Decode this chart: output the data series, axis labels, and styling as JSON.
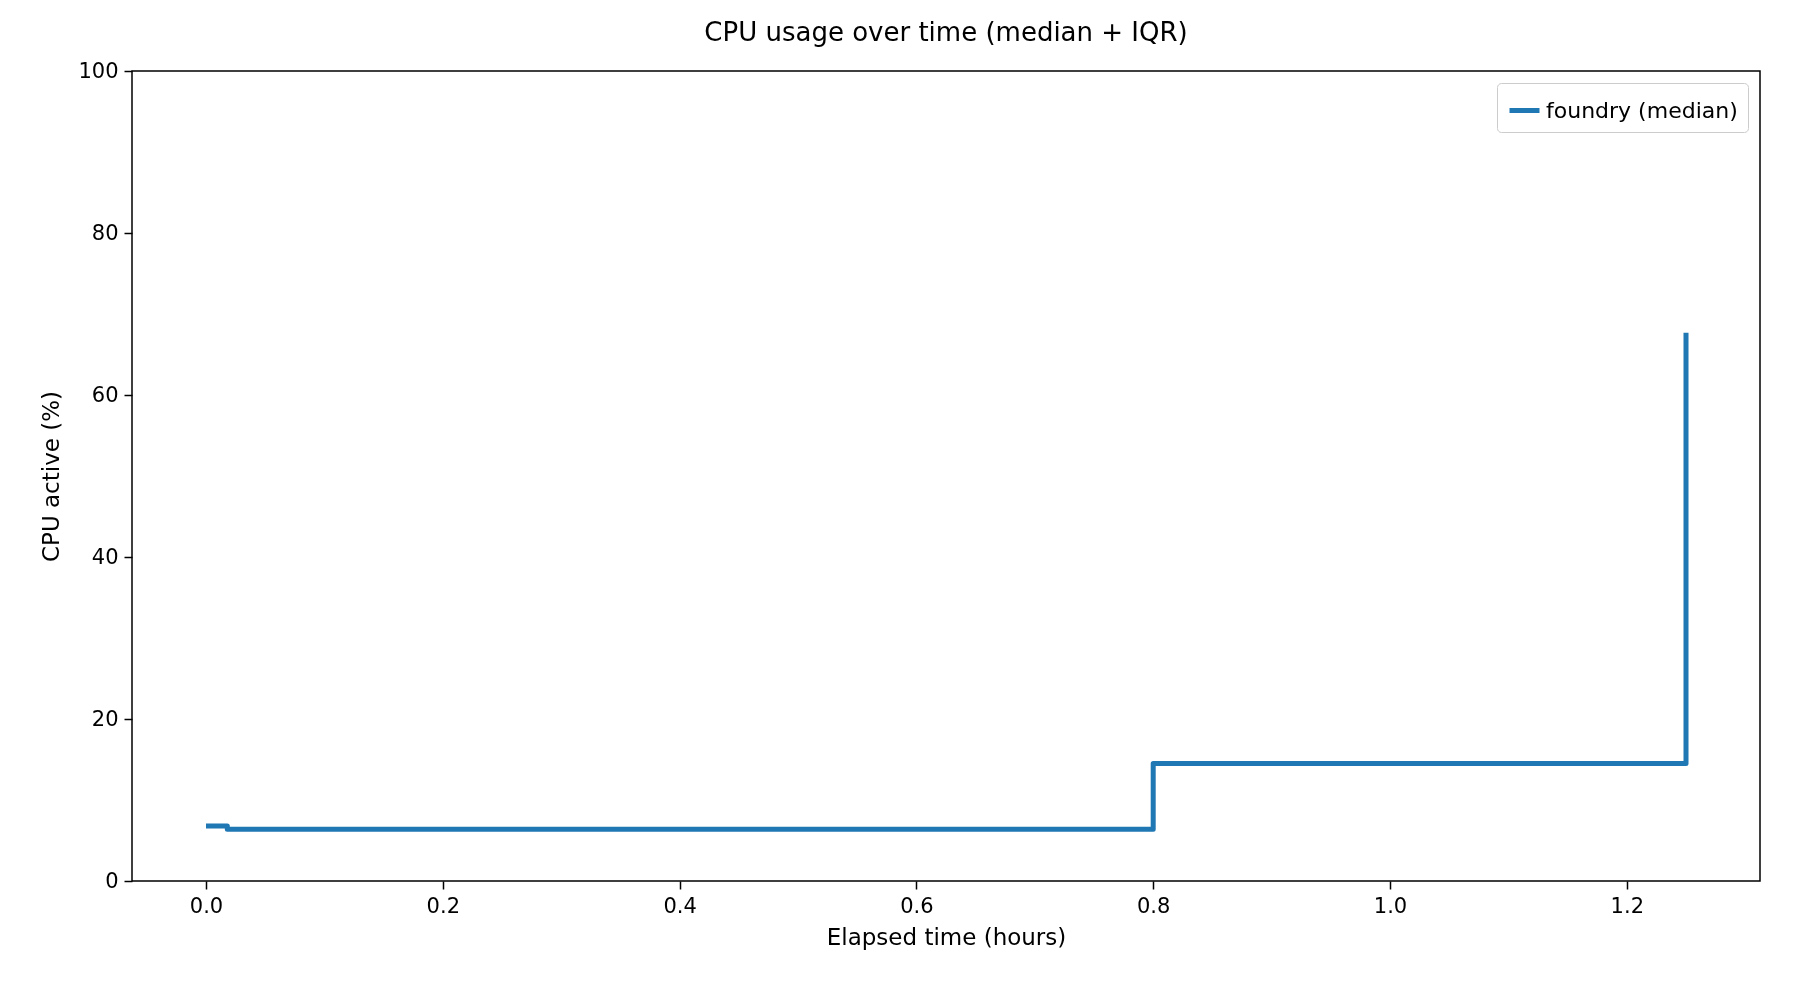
{
  "chart_data": {
    "type": "step",
    "title": "CPU usage over time (median + IQR)",
    "xlabel": "Elapsed time (hours)",
    "ylabel": "CPU active (%)",
    "x": [
      0,
      0.018,
      0.8,
      1.25
    ],
    "series": [
      {
        "name": "foundry (median)",
        "color": "#1f77b4",
        "values": [
          6.8,
          6.4,
          14.5,
          67.7
        ]
      }
    ],
    "xlim": [
      -0.0625,
      1.3125
    ],
    "xticks": [
      {
        "value": 0,
        "label": "0.0"
      },
      0.2,
      0.4,
      0.6,
      0.8,
      {
        "value": 1,
        "label": "1.0"
      },
      1.2
    ],
    "ylim": [
      0,
      100
    ],
    "yticks": [
      0,
      20,
      40,
      60,
      80,
      100
    ],
    "grid": false,
    "legend": "top right"
  }
}
